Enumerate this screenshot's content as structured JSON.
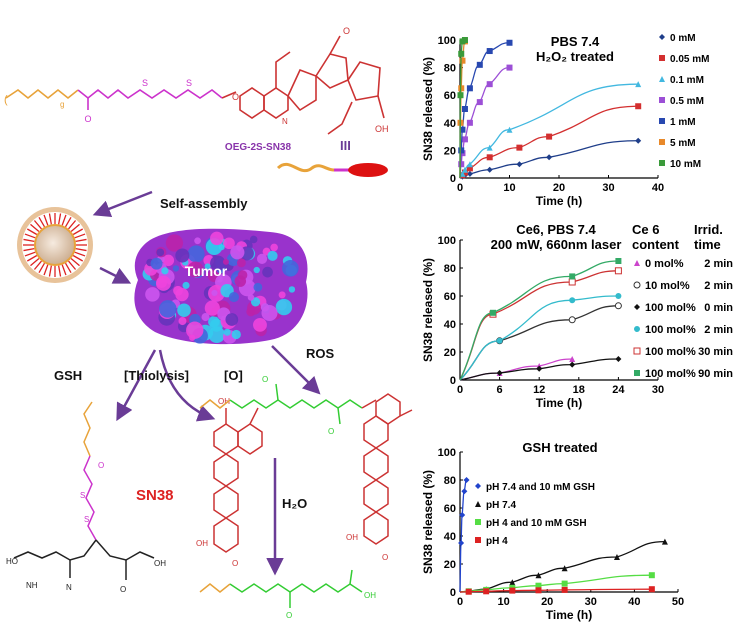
{
  "scheme": {
    "top_molecule_label": "OEG-2S-SN38",
    "roman_label": "III",
    "subscript_g": "g",
    "self_assembly": "Self-assembly",
    "tumor": "Tumor",
    "gsh": "GSH",
    "thiolysis": "[Thiolysis]",
    "oxidant": "[O]",
    "ros": "ROS",
    "h2o": "H₂O",
    "sn38": "SN38",
    "colors": {
      "pink": "#cc33cc",
      "red": "#cc3333",
      "green": "#33cc33",
      "orange": "#e8a33a",
      "arrow": "#6a3c96",
      "black": "#222222"
    }
  },
  "chart_data": [
    {
      "type": "scatter",
      "title": "PBS 7.4",
      "subtitle": "H₂O₂ treated",
      "xlabel": "Time (h)",
      "ylabel": "SN38 released (%)",
      "xlim": [
        0,
        40
      ],
      "ylim": [
        0,
        100
      ],
      "xticks": [
        0,
        10,
        20,
        30,
        40
      ],
      "yticks": [
        0,
        20,
        40,
        60,
        80,
        100
      ],
      "legend_position": "right",
      "series": [
        {
          "name": "0 mM",
          "color": "#1f3e8a",
          "marker": "diamond",
          "x": [
            0,
            0.5,
            1,
            2,
            6,
            12,
            18,
            36
          ],
          "y": [
            0,
            1,
            2,
            3,
            6,
            10,
            15,
            27
          ]
        },
        {
          "name": "0.05 mM",
          "color": "#d32f2f",
          "marker": "square",
          "x": [
            0,
            0.5,
            1,
            2,
            6,
            12,
            18,
            36
          ],
          "y": [
            0,
            2,
            4,
            7,
            15,
            22,
            30,
            52
          ]
        },
        {
          "name": "0.1 mM",
          "color": "#42b8e0",
          "marker": "triangle",
          "x": [
            0,
            0.5,
            1,
            2,
            6,
            10,
            36
          ],
          "y": [
            0,
            3,
            6,
            10,
            22,
            35,
            68
          ]
        },
        {
          "name": "0.5 mM",
          "color": "#9c4fd6",
          "marker": "square",
          "x": [
            0,
            0.25,
            0.5,
            1,
            2,
            4,
            6,
            10
          ],
          "y": [
            0,
            10,
            18,
            28,
            40,
            55,
            68,
            80
          ]
        },
        {
          "name": "1 mM",
          "color": "#2848b0",
          "marker": "square",
          "x": [
            0,
            0.25,
            0.5,
            1,
            2,
            4,
            6,
            10
          ],
          "y": [
            0,
            20,
            35,
            50,
            65,
            82,
            92,
            98
          ]
        },
        {
          "name": "5 mM",
          "color": "#e8892a",
          "marker": "square",
          "x": [
            0,
            0.1,
            0.25,
            0.5,
            1
          ],
          "y": [
            0,
            40,
            65,
            85,
            99
          ]
        },
        {
          "name": "10 mM",
          "color": "#3a9a3a",
          "marker": "square",
          "x": [
            0,
            0.1,
            0.25,
            0.5,
            1
          ],
          "y": [
            0,
            60,
            90,
            99,
            100
          ]
        }
      ]
    },
    {
      "type": "scatter",
      "title": "Ce6, PBS 7.4",
      "subtitle": "200 mW, 660nm laser",
      "xlabel": "Time (h)",
      "ylabel": "SN38 released (%)",
      "xlim": [
        0,
        30
      ],
      "ylim": [
        0,
        100
      ],
      "xticks": [
        0,
        6,
        12,
        18,
        24,
        30
      ],
      "yticks": [
        0,
        20,
        40,
        60,
        80,
        100
      ],
      "legend_header": [
        "Ce 6",
        "content",
        "Irrid.",
        "time"
      ],
      "legend_position": "right",
      "series": [
        {
          "name": "0 mol%",
          "time": "2 min",
          "color": "#cc44cc",
          "marker": "triangle",
          "x": [
            0,
            6,
            12,
            17
          ],
          "y": [
            0,
            5,
            10,
            15
          ]
        },
        {
          "name": "10 mol%",
          "time": "2 min",
          "color": "#333333",
          "marker": "circle-open",
          "x": [
            0,
            6,
            17,
            24
          ],
          "y": [
            0,
            28,
            43,
            53
          ]
        },
        {
          "name": "100 mol%",
          "time": "0 min",
          "color": "#111111",
          "marker": "diamond",
          "x": [
            0,
            6,
            12,
            17,
            24
          ],
          "y": [
            0,
            5,
            8,
            11,
            15
          ]
        },
        {
          "name": "100 mol%",
          "time": "2 min",
          "color": "#33bbcc",
          "marker": "circle",
          "x": [
            0,
            6,
            17,
            24
          ],
          "y": [
            0,
            28,
            57,
            60
          ]
        },
        {
          "name": "100 mol%",
          "time": "30 min",
          "color": "#cc3333",
          "marker": "square-open",
          "x": [
            0,
            5,
            17,
            24
          ],
          "y": [
            0,
            47,
            70,
            78
          ]
        },
        {
          "name": "100 mol%",
          "time": "90 min",
          "color": "#33aa66",
          "marker": "square",
          "x": [
            0,
            5,
            17,
            24
          ],
          "y": [
            0,
            48,
            74,
            85
          ]
        }
      ]
    },
    {
      "type": "scatter",
      "title": "GSH treated",
      "xlabel": "Time (h)",
      "ylabel": "SN38 released (%)",
      "xlim": [
        0,
        50
      ],
      "ylim": [
        0,
        100
      ],
      "xticks": [
        0,
        10,
        20,
        30,
        40,
        50
      ],
      "yticks": [
        0,
        20,
        40,
        60,
        80,
        100
      ],
      "legend_position": "top-left",
      "series": [
        {
          "name": "pH 7.4 and 10 mM GSH",
          "color": "#2244cc",
          "marker": "diamond",
          "x": [
            0,
            0.25,
            0.5,
            1,
            1.5
          ],
          "y": [
            0,
            35,
            55,
            72,
            80
          ]
        },
        {
          "name": "pH 7.4",
          "color": "#111111",
          "marker": "triangle",
          "x": [
            0,
            2,
            6,
            12,
            18,
            24,
            36,
            47
          ],
          "y": [
            0,
            0.5,
            2,
            7,
            12,
            17,
            25,
            36
          ]
        },
        {
          "name": "pH 4 and 10 mM GSH",
          "color": "#55dd44",
          "marker": "square",
          "x": [
            0,
            2,
            6,
            12,
            18,
            24,
            44
          ],
          "y": [
            0,
            0.5,
            1.5,
            3,
            4.5,
            6,
            12
          ]
        },
        {
          "name": "pH 4",
          "color": "#dd2222",
          "marker": "square",
          "x": [
            0,
            2,
            6,
            12,
            18,
            24,
            44
          ],
          "y": [
            0,
            0.2,
            0.5,
            1,
            1.2,
            1.5,
            2
          ]
        }
      ]
    }
  ]
}
